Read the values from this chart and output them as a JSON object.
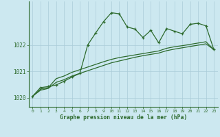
{
  "x": [
    0,
    1,
    2,
    3,
    4,
    5,
    6,
    7,
    8,
    9,
    10,
    11,
    12,
    13,
    14,
    15,
    16,
    17,
    18,
    19,
    20,
    21,
    22,
    23
  ],
  "line1": [
    1020.05,
    1020.38,
    1020.42,
    1020.48,
    1020.62,
    1020.78,
    1020.92,
    1022.0,
    1022.45,
    1022.88,
    1023.22,
    1023.18,
    1022.68,
    1022.6,
    1022.28,
    1022.55,
    1022.08,
    1022.62,
    1022.52,
    1022.42,
    1022.78,
    1022.82,
    1022.72,
    1021.82
  ],
  "line2": [
    1020.05,
    1020.32,
    1020.38,
    1020.72,
    1020.82,
    1020.96,
    1021.06,
    1021.16,
    1021.26,
    1021.36,
    1021.45,
    1021.52,
    1021.57,
    1021.62,
    1021.67,
    1021.72,
    1021.77,
    1021.87,
    1021.93,
    1021.97,
    1022.02,
    1022.07,
    1022.12,
    1021.82
  ],
  "line3": [
    1020.05,
    1020.28,
    1020.35,
    1020.58,
    1020.68,
    1020.82,
    1020.92,
    1021.02,
    1021.12,
    1021.22,
    1021.32,
    1021.39,
    1021.46,
    1021.53,
    1021.59,
    1021.64,
    1021.69,
    1021.78,
    1021.84,
    1021.89,
    1021.94,
    1021.99,
    1022.04,
    1021.82
  ],
  "line_color": "#2d6a2d",
  "bg_color": "#cce8f0",
  "grid_color": "#aaccd8",
  "xlabel": "Graphe pression niveau de la mer (hPa)",
  "yticks": [
    1020,
    1021,
    1022
  ],
  "ylim": [
    1019.65,
    1023.65
  ],
  "xlim": [
    -0.5,
    23.5
  ]
}
